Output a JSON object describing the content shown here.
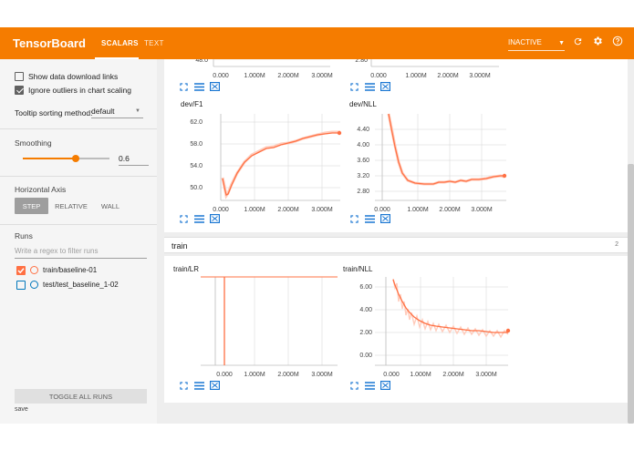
{
  "header": {
    "brand": "TensorBoard",
    "tabs": [
      {
        "label": "SCALARS",
        "active": true
      },
      {
        "label": "TEXT",
        "active": false
      }
    ],
    "run_status": "INACTIVE",
    "accent": "#f57c00"
  },
  "sidebar": {
    "show_download_links": {
      "label": "Show data download links",
      "checked": false
    },
    "ignore_outliers": {
      "label": "Ignore outliers in chart scaling",
      "checked": true
    },
    "tooltip_sorting": {
      "label": "Tooltip sorting method:",
      "value": "default"
    },
    "smoothing": {
      "label": "Smoothing",
      "value": "0.6",
      "fraction": 0.6
    },
    "horizontal_axis": {
      "label": "Horizontal Axis",
      "options": [
        "STEP",
        "RELATIVE",
        "WALL"
      ],
      "selected": "STEP"
    },
    "runs": {
      "label": "Runs",
      "filter_placeholder": "Write a regex to filter runs",
      "items": [
        {
          "name": "train/baseline-01",
          "checked": true,
          "color": "#ff7043"
        },
        {
          "name": "test/test_baseline_1-02",
          "checked": false,
          "color": "#0077bb"
        }
      ]
    },
    "toggle_all": "TOGGLE ALL RUNS",
    "save": "save"
  },
  "section": {
    "title": "train",
    "count": "2"
  },
  "charts": {
    "top_partial_left": {
      "x_ticks": [
        "0.000",
        "1.000M",
        "2.000M",
        "3.000M"
      ]
    },
    "top_partial_right": {
      "x_ticks": [
        "0.000",
        "1.000M",
        "2.000M",
        "3.000M"
      ]
    },
    "dev_f1": {
      "title": "dev/F1",
      "y_ticks": [
        "62.0",
        "58.0",
        "54.0",
        "50.0"
      ],
      "x_ticks": [
        "0.000",
        "1.000M",
        "2.000M",
        "3.000M"
      ]
    },
    "dev_nll": {
      "title": "dev/NLL",
      "y_ticks": [
        "4.40",
        "4.00",
        "3.60",
        "3.20",
        "2.80"
      ],
      "x_ticks": [
        "0.000",
        "1.000M",
        "2.000M",
        "3.000M"
      ]
    },
    "train_lr": {
      "title": "train/LR",
      "x_ticks": [
        "0.000",
        "1.000M",
        "2.000M",
        "3.000M"
      ]
    },
    "train_nll": {
      "title": "train/NLL",
      "y_ticks": [
        "6.00",
        "4.00",
        "2.00",
        "0.00"
      ],
      "x_ticks": [
        "0.000",
        "1.000M",
        "2.000M",
        "3.000M"
      ]
    }
  },
  "icons": {
    "expand": "fit-screen-icon",
    "data": "data-list-icon",
    "fit": "fit-domain-icon",
    "refresh": "refresh-icon",
    "settings": "gear-icon",
    "help": "help-icon"
  }
}
